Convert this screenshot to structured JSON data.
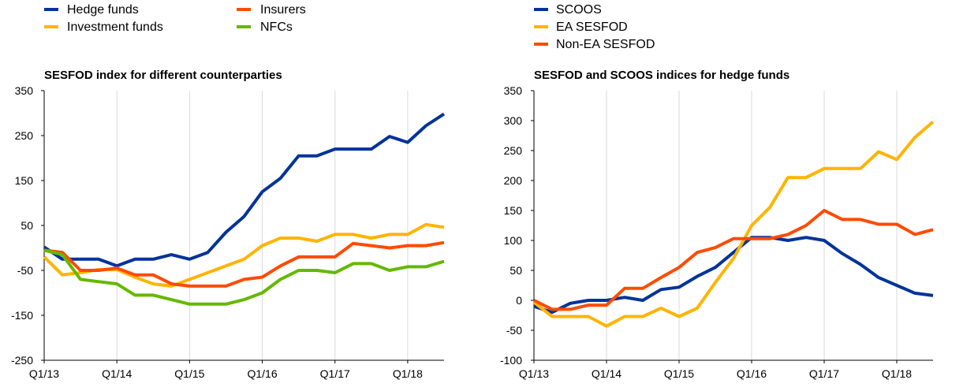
{
  "chart_data": [
    {
      "type": "line",
      "title": "SESFOD index for different counterparties",
      "xlabel": "",
      "ylabel": "",
      "ylim": [
        -250,
        350
      ],
      "yticks": [
        350,
        250,
        150,
        50,
        -50,
        -150,
        -250
      ],
      "ytick_labels": [
        "350",
        "250",
        "150",
        "50",
        "-50",
        "-150",
        "-250"
      ],
      "xtick_labels": [
        "Q1/13",
        "Q1/14",
        "Q1/15",
        "Q1/16",
        "Q1/17",
        "Q1/18"
      ],
      "xtick_index": [
        0,
        4,
        8,
        12,
        16,
        20
      ],
      "n_points": 23,
      "grid": "vertical",
      "legend_position": "top-left",
      "series": [
        {
          "name": "Hedge funds",
          "color": "#003399",
          "values": [
            2,
            -25,
            -25,
            -25,
            -40,
            -25,
            -25,
            -15,
            -25,
            -10,
            35,
            70,
            125,
            155,
            205,
            205,
            220,
            220,
            220,
            248,
            235,
            272,
            298
          ]
        },
        {
          "name": "Investment funds",
          "color": "#FFB400",
          "values": [
            -20,
            -60,
            -55,
            -48,
            -48,
            -65,
            -80,
            -85,
            -70,
            -55,
            -40,
            -25,
            5,
            22,
            22,
            15,
            30,
            30,
            22,
            30,
            30,
            52,
            46
          ]
        },
        {
          "name": "Insurers",
          "color": "#FF4B00",
          "values": [
            -5,
            -10,
            -50,
            -50,
            -45,
            -60,
            -60,
            -80,
            -85,
            -85,
            -85,
            -70,
            -65,
            -40,
            -20,
            -20,
            -20,
            10,
            5,
            0,
            5,
            5,
            12
          ]
        },
        {
          "name": "NFCs",
          "color": "#65B800",
          "values": [
            -5,
            -15,
            -70,
            -75,
            -80,
            -105,
            -105,
            -115,
            -125,
            -125,
            -125,
            -115,
            -100,
            -70,
            -50,
            -50,
            -55,
            -35,
            -35,
            -50,
            -42,
            -42,
            -30
          ]
        }
      ]
    },
    {
      "type": "line",
      "title": "SESFOD and SCOOS indices for hedge funds",
      "xlabel": "",
      "ylabel": "",
      "ylim": [
        -100,
        350
      ],
      "yticks": [
        350,
        300,
        250,
        200,
        150,
        100,
        50,
        0,
        -50,
        -100
      ],
      "ytick_labels": [
        "350",
        "300",
        "250",
        "200",
        "150",
        "100",
        "50",
        "0",
        "-50",
        "-100"
      ],
      "xtick_labels": [
        "Q1/13",
        "Q1/14",
        "Q1/15",
        "Q1/16",
        "Q1/17",
        "Q1/18"
      ],
      "xtick_index": [
        0,
        4,
        8,
        12,
        16,
        20
      ],
      "n_points": 23,
      "grid": "vertical",
      "legend_position": "top-left",
      "series": [
        {
          "name": "SCOOS",
          "color": "#003399",
          "values": [
            -10,
            -20,
            -5,
            0,
            0,
            5,
            0,
            18,
            22,
            40,
            55,
            80,
            105,
            105,
            100,
            105,
            100,
            78,
            60,
            38,
            25,
            12,
            8
          ]
        },
        {
          "name": "EA SESFOD",
          "color": "#FFB400",
          "values": [
            -3,
            -27,
            -27,
            -27,
            -43,
            -27,
            -27,
            -13,
            -27,
            -13,
            30,
            70,
            125,
            155,
            205,
            205,
            220,
            220,
            220,
            248,
            235,
            272,
            298
          ]
        },
        {
          "name": "Non-EA SESFOD",
          "color": "#FF4B00",
          "values": [
            0,
            -15,
            -15,
            -8,
            -8,
            20,
            20,
            38,
            55,
            80,
            88,
            103,
            103,
            103,
            110,
            125,
            150,
            135,
            135,
            127,
            127,
            110,
            118
          ]
        }
      ]
    }
  ]
}
